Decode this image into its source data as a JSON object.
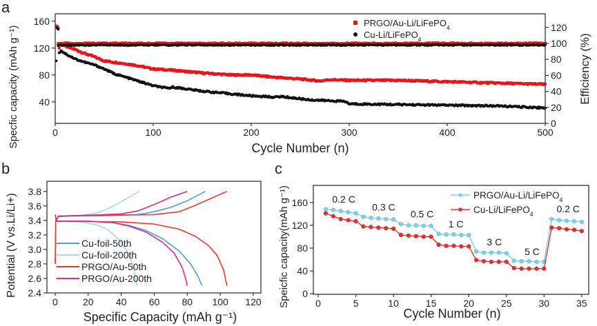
{
  "chart_data": [
    {
      "panel": "a",
      "type": "scatter",
      "xlabel": "Cycle Number (n)",
      "ylabel": "Specfic capacity (mAh g⁻¹)",
      "y2label": "Efficiency (%)",
      "xlim": [
        0,
        500
      ],
      "ylim": [
        8,
        171
      ],
      "y2lim": [
        0,
        137
      ],
      "xticks": [
        0,
        100,
        200,
        300,
        400,
        500
      ],
      "yticks": [
        40,
        80,
        120,
        160
      ],
      "y2ticks": [
        0,
        20,
        40,
        60,
        80,
        100,
        120
      ],
      "grid": false,
      "legend_position": "top-right",
      "series": [
        {
          "name": "PRGO/Au-Li/LiFePO4",
          "color": "#e8141b",
          "marker": "square",
          "capacity": {
            "x": [
              1,
              2,
              3,
              4,
              5,
              10,
              20,
              30,
              40,
              50,
              60,
              80,
              100,
              120,
              150,
              180,
              200,
              220,
              250,
              270,
              280,
              300,
              350,
              400,
              450,
              500
            ],
            "y": [
              153,
              152,
              150,
              120,
              126,
              123,
              118,
              112,
              107,
              101,
              99,
              95,
              89,
              87,
              83,
              80,
              80,
              77,
              74,
              71,
              73,
              72,
              72,
              70,
              68,
              66
            ]
          },
          "efficiency": {
            "x": [
              3,
              500
            ],
            "y": [
              100,
              100
            ]
          }
        },
        {
          "name": "Cu-Li/LiFePO4",
          "color": "#111111",
          "marker": "circle",
          "capacity": {
            "x": [
              1,
              2,
              3,
              4,
              6,
              10,
              20,
              30,
              40,
              50,
              60,
              80,
              100,
              115,
              120,
              150,
              200,
              225,
              230,
              260,
              290,
              295,
              300,
              350,
              400,
              450,
              500
            ],
            "y": [
              101,
              150,
              148,
              113,
              116,
              112,
              104,
              99,
              95,
              89,
              82,
              73,
              64,
              60,
              62,
              56,
              49,
              47,
              48,
              43,
              41,
              41,
              37,
              36,
              35,
              34,
              31
            ]
          },
          "efficiency": {
            "x": [
              3,
              500
            ],
            "y": [
              98,
              98
            ]
          }
        }
      ]
    },
    {
      "panel": "b",
      "type": "line",
      "xlabel": "Specific Capacity (mAh g⁻¹)",
      "ylabel": "Potential (V vs.Li/Li+)",
      "xlim": [
        -5,
        124.6
      ],
      "ylim": [
        2.4,
        3.94
      ],
      "xticks": [
        0,
        20,
        40,
        60,
        80,
        100,
        120
      ],
      "yticks": [
        2.4,
        2.6,
        2.8,
        3.0,
        3.2,
        3.4,
        3.6,
        3.8
      ],
      "grid": false,
      "legend_position": "bottom-left",
      "series": [
        {
          "name": "Cu-foil-50th",
          "color": "#4d9be0",
          "charge": [
            [
              0,
              3.47
            ],
            [
              0.6,
              3.4
            ],
            [
              2,
              3.45
            ],
            [
              10,
              3.46
            ],
            [
              30,
              3.465
            ],
            [
              50,
              3.48
            ],
            [
              60,
              3.52
            ],
            [
              70,
              3.58
            ],
            [
              80,
              3.67
            ],
            [
              91,
              3.8
            ]
          ],
          "discharge": [
            [
              0,
              2.8
            ],
            [
              0.3,
              3.39
            ],
            [
              20,
              3.39
            ],
            [
              35,
              3.37
            ],
            [
              45,
              3.33
            ],
            [
              55,
              3.26
            ],
            [
              65,
              3.15
            ],
            [
              75,
              2.98
            ],
            [
              82,
              2.8
            ],
            [
              86,
              2.65
            ],
            [
              89,
              2.5
            ]
          ]
        },
        {
          "name": "Cu-foil-200th",
          "color": "#a8d8f5",
          "charge": [
            [
              0.5,
              3.4
            ],
            [
              2,
              3.46
            ],
            [
              15,
              3.47
            ],
            [
              25,
              3.5
            ],
            [
              33,
              3.57
            ],
            [
              40,
              3.66
            ],
            [
              51,
              3.8
            ]
          ],
          "discharge": [
            [
              0,
              3.39
            ],
            [
              15,
              3.38
            ],
            [
              25,
              3.34
            ],
            [
              32,
              3.27
            ],
            [
              38,
              3.15
            ],
            [
              43,
              3.0
            ],
            [
              46,
              2.85
            ],
            [
              48,
              2.68
            ],
            [
              49.5,
              2.5
            ]
          ]
        },
        {
          "name": "PRGO/Au-50th",
          "color": "#e8382a",
          "charge": [
            [
              0,
              3.48
            ],
            [
              0.6,
              3.4
            ],
            [
              2,
              3.46
            ],
            [
              20,
              3.47
            ],
            [
              60,
              3.48
            ],
            [
              75,
              3.52
            ],
            [
              83,
              3.59
            ],
            [
              92,
              3.68
            ],
            [
              104,
              3.8
            ]
          ],
          "discharge": [
            [
              0,
              2.8
            ],
            [
              0.3,
              3.39
            ],
            [
              40,
              3.38
            ],
            [
              60,
              3.35
            ],
            [
              75,
              3.28
            ],
            [
              85,
              3.18
            ],
            [
              93,
              3.05
            ],
            [
              98,
              2.92
            ],
            [
              102,
              2.72
            ],
            [
              104,
              2.5
            ]
          ]
        },
        {
          "name": "PRGO/Au-200th",
          "color": "#e02a80",
          "charge": [
            [
              0.5,
              3.4
            ],
            [
              2,
              3.46
            ],
            [
              20,
              3.47
            ],
            [
              40,
              3.49
            ],
            [
              50,
              3.53
            ],
            [
              60,
              3.62
            ],
            [
              70,
              3.72
            ],
            [
              80,
              3.8
            ]
          ],
          "discharge": [
            [
              0,
              3.39
            ],
            [
              20,
              3.39
            ],
            [
              35,
              3.37
            ],
            [
              45,
              3.32
            ],
            [
              55,
              3.24
            ],
            [
              65,
              3.1
            ],
            [
              72,
              2.95
            ],
            [
              77,
              2.75
            ],
            [
              79,
              2.6
            ],
            [
              80,
              2.5
            ]
          ]
        }
      ]
    },
    {
      "panel": "c",
      "type": "line",
      "xlabel": "Cycle Number (n)",
      "ylabel": "Speicfic capacity(mAh g⁻¹)",
      "xlim": [
        -0.64,
        35.93
      ],
      "ylim": [
        -1,
        190
      ],
      "xticks": [
        0,
        5,
        10,
        15,
        20,
        25,
        30,
        35
      ],
      "yticks": [
        0,
        40,
        80,
        120,
        160
      ],
      "grid": false,
      "legend_position": "top-right",
      "x": [
        1,
        2,
        3,
        4,
        5,
        6,
        7,
        8,
        9,
        10,
        11,
        12,
        13,
        14,
        15,
        16,
        17,
        18,
        19,
        20,
        21,
        22,
        23,
        24,
        25,
        26,
        27,
        28,
        29,
        30,
        31,
        32,
        33,
        34,
        35
      ],
      "series": [
        {
          "name": "PRGO/Au-Li/LiFePO4",
          "color": "#7fcfe6",
          "values": [
            148,
            147,
            145,
            143,
            141,
            135,
            133,
            132,
            131,
            130,
            122,
            120,
            120,
            119,
            119,
            105,
            104,
            104,
            103,
            103,
            74,
            72,
            72,
            72,
            71,
            58,
            57,
            57,
            56,
            56,
            131,
            129,
            128,
            127,
            126
          ]
        },
        {
          "name": "Cu-Li/LiFePO4",
          "color": "#e53030",
          "values": [
            141,
            136,
            131,
            129,
            127,
            118,
            117,
            116,
            115,
            114,
            103,
            102,
            101,
            100,
            100,
            86,
            84,
            84,
            83,
            83,
            59,
            57,
            56,
            56,
            56,
            45,
            44,
            44,
            44,
            44,
            116,
            115,
            113,
            112,
            110
          ]
        }
      ],
      "annotations": [
        {
          "text": "0.2 C",
          "x": 3.4,
          "y": 160
        },
        {
          "text": "0.3 C",
          "x": 8.7,
          "y": 146
        },
        {
          "text": "0.5 C",
          "x": 13.8,
          "y": 134
        },
        {
          "text": "1 C",
          "x": 18.3,
          "y": 116
        },
        {
          "text": "3 C",
          "x": 23.4,
          "y": 85
        },
        {
          "text": "5 C",
          "x": 28.4,
          "y": 68
        },
        {
          "text": "0.2 C",
          "x": 33.2,
          "y": 143
        }
      ]
    }
  ],
  "panel_labels": [
    "a",
    "b",
    "c"
  ]
}
